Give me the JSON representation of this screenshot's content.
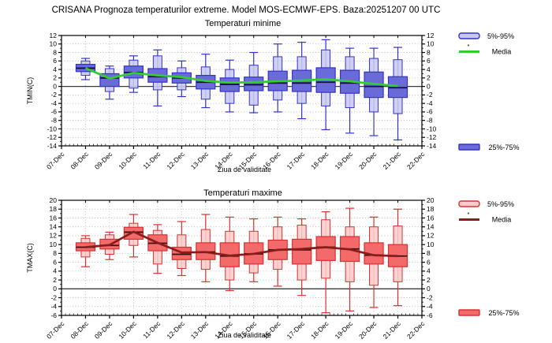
{
  "title": "CRISANA  Prognoza temperaturilor extreme.  Model MOS-ECMWF-EPS. Baza:20251207 00 UTC",
  "chart_data": [
    {
      "type": "boxplot",
      "subtitle": "Temperaturi minime",
      "ylabel": "TMIN(C)",
      "xlabel": "Ziua de validitate",
      "ymin": -14,
      "ymax": 12,
      "ytick_step": 2,
      "grid": "dotted",
      "legend_position": "right",
      "legend": {
        "p5p95": "5%-95%",
        "media": "Media",
        "q25q75": "25%-75%"
      },
      "colors": {
        "subtitle": "#2222cc",
        "border": "#3333cc",
        "box_fill": "#6a6ad8",
        "range_fill": "#c9c9f0",
        "median": "#10103a",
        "media": "#33cc33"
      },
      "dates": [
        "07-Dec",
        "08-Dec",
        "09-Dec",
        "10-Dec",
        "11-Dec",
        "12-Dec",
        "13-Dec",
        "14-Dec",
        "15-Dec",
        "16-Dec",
        "17-Dec",
        "18-Dec",
        "19-Dec",
        "20-Dec",
        "21-Dec",
        "22-Dec"
      ],
      "boxes": [
        {
          "date": "08-Dec",
          "low": 1.6,
          "p5": 2.6,
          "q25": 3.5,
          "med": 4.3,
          "q75": 5.2,
          "p95": 6.0,
          "high": 6.6
        },
        {
          "date": "09-Dec",
          "low": -3.0,
          "p5": -1.2,
          "q25": 0.0,
          "med": 2.0,
          "q75": 3.0,
          "p95": 4.2,
          "high": 4.8
        },
        {
          "date": "10-Dec",
          "low": -1.4,
          "p5": -0.4,
          "q25": 2.0,
          "med": 3.3,
          "q75": 4.8,
          "p95": 6.2,
          "high": 7.2
        },
        {
          "date": "11-Dec",
          "low": -4.6,
          "p5": -0.8,
          "q25": 1.0,
          "med": 2.3,
          "q75": 4.2,
          "p95": 7.2,
          "high": 8.6
        },
        {
          "date": "12-Dec",
          "low": -2.4,
          "p5": -0.8,
          "q25": 0.8,
          "med": 2.0,
          "q75": 3.2,
          "p95": 4.4,
          "high": 6.0
        },
        {
          "date": "13-Dec",
          "low": -5.0,
          "p5": -3.0,
          "q25": -0.6,
          "med": 1.0,
          "q75": 2.6,
          "p95": 4.6,
          "high": 7.6
        },
        {
          "date": "14-Dec",
          "low": -6.0,
          "p5": -4.0,
          "q25": -1.2,
          "med": 0.5,
          "q75": 2.0,
          "p95": 4.0,
          "high": 6.2
        },
        {
          "date": "15-Dec",
          "low": -6.2,
          "p5": -4.4,
          "q25": -1.0,
          "med": 0.4,
          "q75": 2.2,
          "p95": 5.0,
          "high": 8.0
        },
        {
          "date": "16-Dec",
          "low": -6.0,
          "p5": -3.2,
          "q25": -1.0,
          "med": 0.8,
          "q75": 3.6,
          "p95": 7.0,
          "high": 10.0
        },
        {
          "date": "17-Dec",
          "low": -7.6,
          "p5": -4.0,
          "q25": -1.2,
          "med": 0.8,
          "q75": 3.8,
          "p95": 7.0,
          "high": 10.4
        },
        {
          "date": "18-Dec",
          "low": -10.2,
          "p5": -4.6,
          "q25": -1.4,
          "med": 1.0,
          "q75": 4.4,
          "p95": 8.6,
          "high": 11.0
        },
        {
          "date": "19-Dec",
          "low": -11.0,
          "p5": -5.0,
          "q25": -1.6,
          "med": 0.8,
          "q75": 3.8,
          "p95": 7.0,
          "high": 9.0
        },
        {
          "date": "20-Dec",
          "low": -11.6,
          "p5": -6.0,
          "q25": -2.6,
          "med": 0.0,
          "q75": 3.4,
          "p95": 6.6,
          "high": 9.0
        },
        {
          "date": "21-Dec",
          "low": -12.6,
          "p5": -6.4,
          "q25": -2.6,
          "med": -0.3,
          "q75": 2.3,
          "p95": 6.3,
          "high": 9.2
        }
      ],
      "media": [
        4.3,
        1.9,
        3.2,
        2.6,
        2.2,
        1.3,
        0.9,
        1.0,
        1.2,
        1.4,
        1.7,
        1.2,
        0.6,
        0.1
      ]
    },
    {
      "type": "boxplot",
      "subtitle": "Temperaturi maxime",
      "ylabel": "TMAX(C)",
      "xlabel": "Ziua de validitate",
      "ymin": -6,
      "ymax": 20,
      "ytick_step": 2,
      "grid": "dotted",
      "legend_position": "right",
      "legend": {
        "p5p95": "5%-95%",
        "media": "Media",
        "q25q75": "25%-75%"
      },
      "colors": {
        "subtitle": "#cc2222",
        "border": "#d93030",
        "box_fill": "#f26a6a",
        "range_fill": "#f9cccc",
        "median": "#3a1010",
        "media": "#8b1c1c"
      },
      "dates": [
        "07-Dec",
        "08-Dec",
        "09-Dec",
        "10-Dec",
        "11-Dec",
        "12-Dec",
        "13-Dec",
        "14-Dec",
        "15-Dec",
        "16-Dec",
        "17-Dec",
        "18-Dec",
        "19-Dec",
        "20-Dec",
        "21-Dec",
        "22-Dec"
      ],
      "boxes": [
        {
          "date": "08-Dec",
          "low": 5.0,
          "p5": 7.2,
          "q25": 8.6,
          "med": 9.4,
          "q75": 10.4,
          "p95": 11.4,
          "high": 12.0
        },
        {
          "date": "09-Dec",
          "low": 6.6,
          "p5": 7.8,
          "q25": 9.0,
          "med": 9.8,
          "q75": 11.2,
          "p95": 12.2,
          "high": 12.8
        },
        {
          "date": "10-Dec",
          "low": 7.2,
          "p5": 9.8,
          "q25": 11.2,
          "med": 12.8,
          "q75": 13.9,
          "p95": 14.8,
          "high": 16.8
        },
        {
          "date": "11-Dec",
          "low": 3.5,
          "p5": 5.6,
          "q25": 8.6,
          "med": 10.3,
          "q75": 12.2,
          "p95": 13.2,
          "high": 14.5
        },
        {
          "date": "12-Dec",
          "low": 3.0,
          "p5": 4.6,
          "q25": 6.6,
          "med": 7.8,
          "q75": 9.4,
          "p95": 12.2,
          "high": 15.2
        },
        {
          "date": "13-Dec",
          "low": 1.6,
          "p5": 4.4,
          "q25": 6.6,
          "med": 8.3,
          "q75": 10.4,
          "p95": 13.4,
          "high": 16.8
        },
        {
          "date": "14-Dec",
          "low": -0.4,
          "p5": 2.0,
          "q25": 5.0,
          "med": 7.4,
          "q75": 10.4,
          "p95": 13.0,
          "high": 16.2
        },
        {
          "date": "15-Dec",
          "low": 1.6,
          "p5": 3.6,
          "q25": 5.6,
          "med": 7.9,
          "q75": 10.4,
          "p95": 13.0,
          "high": 15.8
        },
        {
          "date": "16-Dec",
          "low": 0.6,
          "p5": 4.4,
          "q25": 6.6,
          "med": 8.8,
          "q75": 11.0,
          "p95": 14.0,
          "high": 16.2
        },
        {
          "date": "17-Dec",
          "low": -1.5,
          "p5": 2.0,
          "q25": 5.6,
          "med": 8.8,
          "q75": 11.2,
          "p95": 14.4,
          "high": 15.8
        },
        {
          "date": "18-Dec",
          "low": -5.4,
          "p5": 2.4,
          "q25": 6.4,
          "med": 9.4,
          "q75": 11.8,
          "p95": 15.6,
          "high": 17.4
        },
        {
          "date": "19-Dec",
          "low": -5.0,
          "p5": 1.6,
          "q25": 6.2,
          "med": 9.0,
          "q75": 11.8,
          "p95": 14.0,
          "high": 18.2
        },
        {
          "date": "20-Dec",
          "low": -4.2,
          "p5": 0.8,
          "q25": 5.6,
          "med": 7.6,
          "q75": 10.4,
          "p95": 14.0,
          "high": 16.2
        },
        {
          "date": "21-Dec",
          "low": -3.8,
          "p5": 1.6,
          "q25": 5.0,
          "med": 7.4,
          "q75": 10.0,
          "p95": 14.2,
          "high": 18.0
        }
      ],
      "media": [
        9.4,
        9.9,
        12.9,
        10.4,
        8.2,
        8.3,
        7.5,
        7.9,
        8.8,
        9.0,
        9.4,
        8.9,
        7.6,
        7.4
      ]
    }
  ]
}
